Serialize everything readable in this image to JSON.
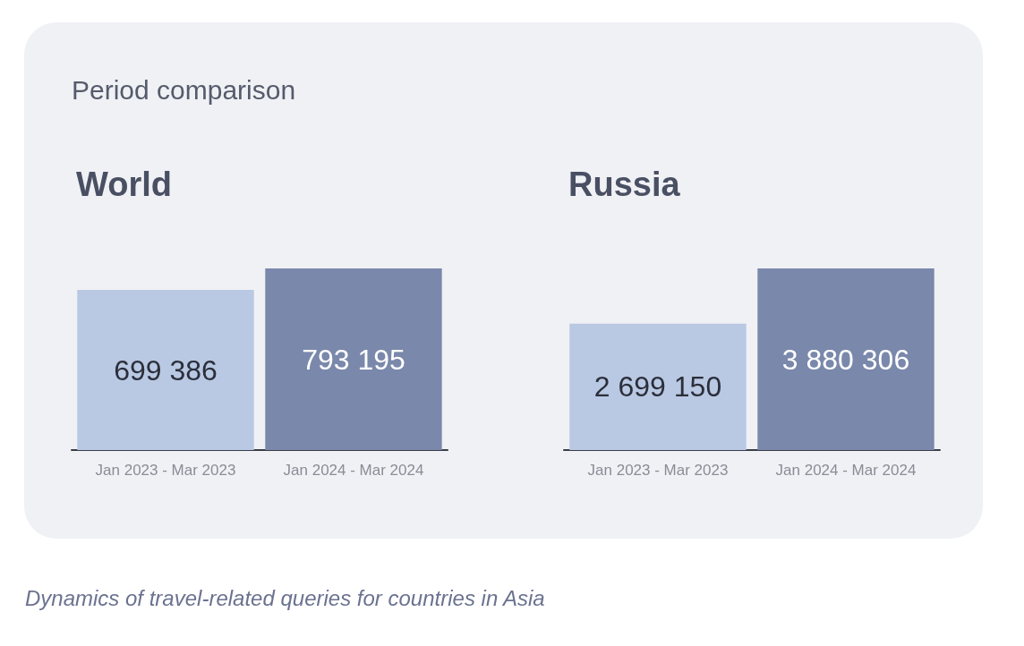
{
  "chart_data": [
    {
      "type": "bar",
      "title": "World",
      "categories": [
        "Jan 2023 - Mar 2023",
        "Jan 2024 - Mar 2024"
      ],
      "values": [
        699386,
        793195
      ],
      "colors": [
        "#b9c8e3",
        "#7a88ab"
      ],
      "data_labels": true,
      "annotations": [
        "Period comparison"
      ]
    },
    {
      "type": "bar",
      "title": "Russia",
      "categories": [
        "Jan 2023 - Mar 2023",
        "Jan 2024 - Mar 2024"
      ],
      "values": [
        2699150,
        3880306
      ],
      "colors": [
        "#b9c8e3",
        "#7a88ab"
      ],
      "data_labels": true,
      "annotations": [
        "Dynamics of travel-related queries for countries in Asia"
      ]
    }
  ]
}
